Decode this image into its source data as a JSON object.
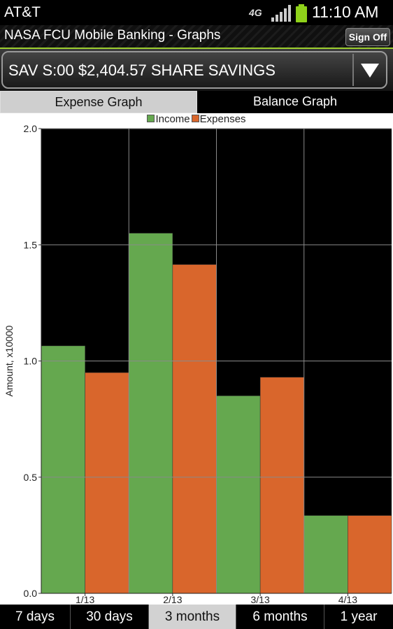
{
  "status_bar": {
    "carrier": "AT&T",
    "network": "4G",
    "time": "11:10 AM",
    "battery_color": "#8fd21a"
  },
  "header": {
    "title": "NASA FCU Mobile Banking - Graphs",
    "sign_off_label": "Sign Off"
  },
  "account_selector": {
    "selected": "SAV S:00 $2,404.57 SHARE SAVINGS",
    "arrow_icon": "chevron-down-icon"
  },
  "graph_tabs": [
    {
      "label": "Expense Graph",
      "active": true
    },
    {
      "label": "Balance Graph",
      "active": false
    }
  ],
  "range_tabs": [
    {
      "label": "7 days",
      "active": false
    },
    {
      "label": "30 days",
      "active": false
    },
    {
      "label": "3 months",
      "active": true
    },
    {
      "label": "6 months",
      "active": false
    },
    {
      "label": "1 year",
      "active": false
    }
  ],
  "colors": {
    "income": "#65a84f",
    "expenses": "#d9662c",
    "plot_background": "#000000",
    "grid": "#8a8a8a"
  },
  "chart_data": {
    "type": "bar",
    "categories": [
      "1/13",
      "2/13",
      "3/13",
      "4/13"
    ],
    "series": [
      {
        "name": "Income",
        "values": [
          1.065,
          1.55,
          0.85,
          0.335
        ]
      },
      {
        "name": "Expenses",
        "values": [
          0.95,
          1.415,
          0.93,
          0.335
        ]
      }
    ],
    "ylabel": "Amount, x10000",
    "xlabel": "",
    "ylim": [
      0,
      2.0
    ],
    "yticks": [
      "0.0",
      "0.5",
      "1.0",
      "1.5",
      "2.0"
    ],
    "legend_position": "top",
    "grid": true
  }
}
